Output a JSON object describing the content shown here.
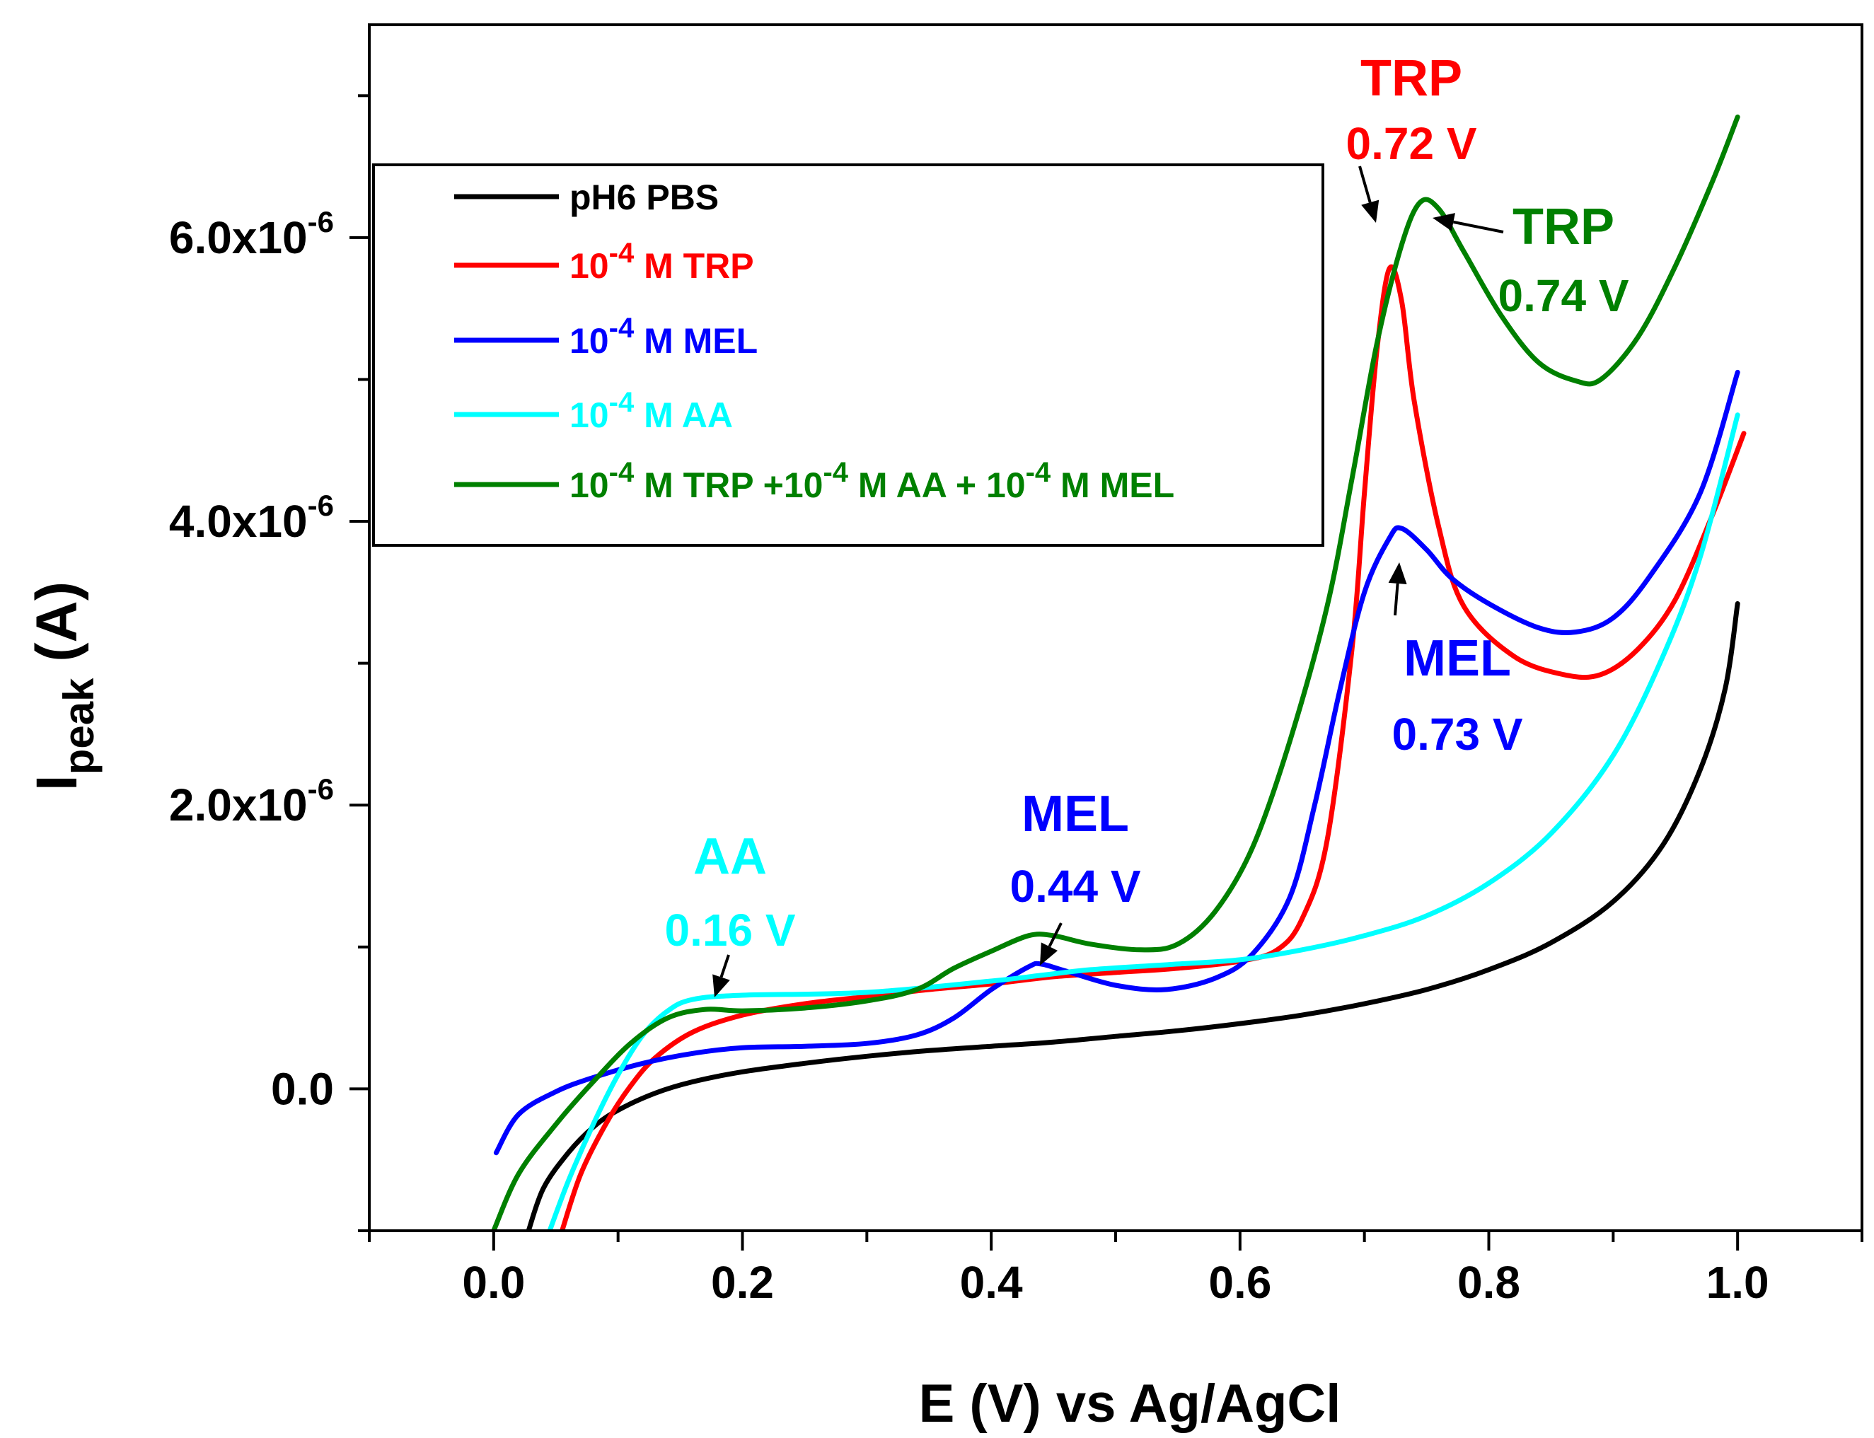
{
  "chart_data": {
    "type": "line",
    "title": "",
    "xlabel": "E (V) vs Ag/AgCl",
    "ylabel_main": "I",
    "ylabel_sub": "peak",
    "ylabel_unit": " (A)",
    "xlim": [
      -0.1,
      1.1
    ],
    "ylim": [
      -1e-06,
      7.5e-06
    ],
    "grid": false,
    "legend_position": "top-left",
    "x_ticks": [
      {
        "v": 0.0,
        "label": "0.0"
      },
      {
        "v": 0.2,
        "label": "0.2"
      },
      {
        "v": 0.4,
        "label": "0.4"
      },
      {
        "v": 0.6,
        "label": "0.6"
      },
      {
        "v": 0.8,
        "label": "0.8"
      },
      {
        "v": 1.0,
        "label": "1.0"
      }
    ],
    "x_minor_ticks": [
      -0.1,
      0.1,
      0.3,
      0.5,
      0.7,
      0.9,
      1.1
    ],
    "y_ticks": [
      {
        "v": 0.0,
        "mant": "0.0",
        "exp": ""
      },
      {
        "v": 2e-06,
        "mant": "2.0x10",
        "exp": "-6"
      },
      {
        "v": 4e-06,
        "mant": "4.0x10",
        "exp": "-6"
      },
      {
        "v": 6e-06,
        "mant": "6.0x10",
        "exp": "-6"
      }
    ],
    "y_minor_ticks": [
      -1e-06,
      1e-06,
      3e-06,
      5e-06,
      7e-06
    ],
    "series": [
      {
        "name": "pH6 PBS",
        "legend": {
          "pre": "pH6 PBS",
          "sup": "",
          "post": ""
        },
        "color": "#000000",
        "points": [
          [
            0.028,
            -1e-06
          ],
          [
            0.04,
            -7e-07
          ],
          [
            0.06,
            -4.5e-07
          ],
          [
            0.08,
            -2.7e-07
          ],
          [
            0.1,
            -1.5e-07
          ],
          [
            0.13,
            -3e-08
          ],
          [
            0.16,
            5e-08
          ],
          [
            0.2,
            1.2e-07
          ],
          [
            0.25,
            1.8e-07
          ],
          [
            0.3,
            2.3e-07
          ],
          [
            0.35,
            2.7e-07
          ],
          [
            0.4,
            3e-07
          ],
          [
            0.45,
            3.3e-07
          ],
          [
            0.5,
            3.7e-07
          ],
          [
            0.55,
            4.1e-07
          ],
          [
            0.6,
            4.6e-07
          ],
          [
            0.65,
            5.2e-07
          ],
          [
            0.7,
            6e-07
          ],
          [
            0.75,
            7e-07
          ],
          [
            0.8,
            8.4e-07
          ],
          [
            0.85,
            1.03e-06
          ],
          [
            0.9,
            1.32e-06
          ],
          [
            0.94,
            1.72e-06
          ],
          [
            0.97,
            2.25e-06
          ],
          [
            0.99,
            2.82e-06
          ],
          [
            1.0,
            3.42e-06
          ]
        ]
      },
      {
        "name": "10-4 M TRP",
        "legend": {
          "pre": "10",
          "sup": "-4",
          "post": " M TRP"
        },
        "color": "#ff0000",
        "points": [
          [
            0.055,
            -1e-06
          ],
          [
            0.07,
            -6e-07
          ],
          [
            0.09,
            -2.5e-07
          ],
          [
            0.11,
            2e-08
          ],
          [
            0.13,
            2.2e-07
          ],
          [
            0.16,
            4e-07
          ],
          [
            0.2,
            5.2e-07
          ],
          [
            0.25,
            6e-07
          ],
          [
            0.3,
            6.5e-07
          ],
          [
            0.35,
            7e-07
          ],
          [
            0.4,
            7.4e-07
          ],
          [
            0.45,
            7.9e-07
          ],
          [
            0.5,
            8.2e-07
          ],
          [
            0.55,
            8.5e-07
          ],
          [
            0.6,
            9e-07
          ],
          [
            0.63,
            9.8e-07
          ],
          [
            0.65,
            1.2e-06
          ],
          [
            0.67,
            1.75e-06
          ],
          [
            0.69,
            3.1e-06
          ],
          [
            0.7,
            4.2e-06
          ],
          [
            0.71,
            5.2e-06
          ],
          [
            0.72,
            5.78e-06
          ],
          [
            0.73,
            5.55e-06
          ],
          [
            0.74,
            4.85e-06
          ],
          [
            0.76,
            3.95e-06
          ],
          [
            0.78,
            3.4e-06
          ],
          [
            0.82,
            3.05e-06
          ],
          [
            0.86,
            2.92e-06
          ],
          [
            0.89,
            2.92e-06
          ],
          [
            0.92,
            3.1e-06
          ],
          [
            0.95,
            3.45e-06
          ],
          [
            0.98,
            4.05e-06
          ],
          [
            1.005,
            4.62e-06
          ]
        ]
      },
      {
        "name": "10-4 M MEL",
        "legend": {
          "pre": "10",
          "sup": "-4",
          "post": " M MEL"
        },
        "color": "#0000ff",
        "points": [
          [
            0.002,
            -4.5e-07
          ],
          [
            0.02,
            -1.8e-07
          ],
          [
            0.05,
            -2e-08
          ],
          [
            0.08,
            8e-08
          ],
          [
            0.12,
            1.8e-07
          ],
          [
            0.16,
            2.5e-07
          ],
          [
            0.2,
            2.9e-07
          ],
          [
            0.25,
            3e-07
          ],
          [
            0.3,
            3.2e-07
          ],
          [
            0.34,
            3.8e-07
          ],
          [
            0.37,
            5e-07
          ],
          [
            0.4,
            7e-07
          ],
          [
            0.43,
            8.6e-07
          ],
          [
            0.44,
            8.8e-07
          ],
          [
            0.46,
            8.3e-07
          ],
          [
            0.5,
            7.3e-07
          ],
          [
            0.54,
            7e-07
          ],
          [
            0.58,
            7.8e-07
          ],
          [
            0.61,
            9.5e-07
          ],
          [
            0.64,
            1.35e-06
          ],
          [
            0.66,
            2e-06
          ],
          [
            0.68,
            2.8e-06
          ],
          [
            0.7,
            3.5e-06
          ],
          [
            0.72,
            3.88e-06
          ],
          [
            0.73,
            3.95e-06
          ],
          [
            0.75,
            3.8e-06
          ],
          [
            0.77,
            3.6e-06
          ],
          [
            0.8,
            3.42e-06
          ],
          [
            0.84,
            3.25e-06
          ],
          [
            0.87,
            3.22e-06
          ],
          [
            0.9,
            3.32e-06
          ],
          [
            0.93,
            3.62e-06
          ],
          [
            0.97,
            4.2e-06
          ],
          [
            1.0,
            5.05e-06
          ]
        ]
      },
      {
        "name": "10-4 M AA",
        "legend": {
          "pre": "10",
          "sup": "-4",
          "post": " M AA"
        },
        "color": "#00ffff",
        "points": [
          [
            0.045,
            -1e-06
          ],
          [
            0.06,
            -6.5e-07
          ],
          [
            0.08,
            -2.5e-07
          ],
          [
            0.1,
            1e-07
          ],
          [
            0.12,
            3.8e-07
          ],
          [
            0.14,
            5.5e-07
          ],
          [
            0.16,
            6.3e-07
          ],
          [
            0.2,
            6.6e-07
          ],
          [
            0.3,
            6.8e-07
          ],
          [
            0.4,
            7.6e-07
          ],
          [
            0.44,
            8e-07
          ],
          [
            0.48,
            8.4e-07
          ],
          [
            0.55,
            8.8e-07
          ],
          [
            0.6,
            9.1e-07
          ],
          [
            0.65,
            9.8e-07
          ],
          [
            0.7,
            1.08e-06
          ],
          [
            0.75,
            1.22e-06
          ],
          [
            0.8,
            1.45e-06
          ],
          [
            0.85,
            1.8e-06
          ],
          [
            0.9,
            2.35e-06
          ],
          [
            0.94,
            3.05e-06
          ],
          [
            0.97,
            3.75e-06
          ],
          [
            1.0,
            4.75e-06
          ]
        ]
      },
      {
        "name": "10-4 M TRP +10-4 M AA + 10-4 M MEL",
        "legend": {
          "pre": "10",
          "sup": "-4",
          "post": " M TRP +10",
          "sup2": "-4",
          "post2": " M AA + 10",
          "sup3": "-4",
          "post3": " M MEL"
        },
        "color": "#008000",
        "points": [
          [
            0.0,
            -1e-06
          ],
          [
            0.02,
            -6e-07
          ],
          [
            0.05,
            -2.5e-07
          ],
          [
            0.08,
            5e-08
          ],
          [
            0.11,
            3.2e-07
          ],
          [
            0.14,
            5e-07
          ],
          [
            0.17,
            5.6e-07
          ],
          [
            0.2,
            5.5e-07
          ],
          [
            0.25,
            5.7e-07
          ],
          [
            0.3,
            6.2e-07
          ],
          [
            0.34,
            7e-07
          ],
          [
            0.37,
            8.5e-07
          ],
          [
            0.4,
            9.7e-07
          ],
          [
            0.43,
            1.08e-06
          ],
          [
            0.45,
            1.08e-06
          ],
          [
            0.48,
            1.02e-06
          ],
          [
            0.52,
            9.8e-07
          ],
          [
            0.55,
            1.02e-06
          ],
          [
            0.58,
            1.25e-06
          ],
          [
            0.61,
            1.7e-06
          ],
          [
            0.64,
            2.45e-06
          ],
          [
            0.67,
            3.4e-06
          ],
          [
            0.69,
            4.3e-06
          ],
          [
            0.71,
            5.25e-06
          ],
          [
            0.73,
            5.95e-06
          ],
          [
            0.745,
            6.25e-06
          ],
          [
            0.76,
            6.2e-06
          ],
          [
            0.78,
            5.9e-06
          ],
          [
            0.81,
            5.45e-06
          ],
          [
            0.84,
            5.12e-06
          ],
          [
            0.87,
            4.99e-06
          ],
          [
            0.89,
            5e-06
          ],
          [
            0.92,
            5.3e-06
          ],
          [
            0.95,
            5.8e-06
          ],
          [
            0.98,
            6.4e-06
          ],
          [
            1.0,
            6.85e-06
          ]
        ]
      }
    ],
    "annotations": [
      {
        "id": "trp-red",
        "name": "TRP",
        "potential": "0.72 V",
        "color": "#ff0000"
      },
      {
        "id": "trp-green",
        "name": "TRP",
        "potential": "0.74 V",
        "color": "#008000"
      },
      {
        "id": "mel-high",
        "name": "MEL",
        "potential": "0.73 V",
        "color": "#0000ff"
      },
      {
        "id": "mel-low",
        "name": "MEL",
        "potential": "0.44 V",
        "color": "#0000ff"
      },
      {
        "id": "aa",
        "name": "AA",
        "potential": "0.16 V",
        "color": "#00ffff"
      }
    ]
  }
}
